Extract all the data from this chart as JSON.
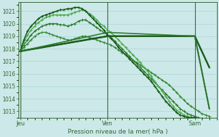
{
  "bg_color": "#cce8e8",
  "grid_color": "#aad4d4",
  "xlabel": "Pression niveau de la mer( hPa )",
  "xlabel_color": "#336633",
  "tick_color": "#336633",
  "axis_color": "#336633",
  "yticks": [
    1013,
    1014,
    1015,
    1016,
    1017,
    1018,
    1019,
    1020,
    1021
  ],
  "ylim": [
    1012.5,
    1021.7
  ],
  "xtick_labels": [
    "Jeu",
    "Ven",
    "Sam"
  ],
  "xtick_positions": [
    0,
    48,
    96
  ],
  "xlim": [
    -1,
    108
  ],
  "vline_color": "#336633",
  "series": [
    {
      "x": [
        0,
        2,
        4,
        6,
        8,
        10,
        12,
        14,
        16,
        18,
        20,
        22,
        24,
        26,
        28,
        30,
        32,
        34,
        36,
        38,
        40,
        42,
        44,
        46,
        48,
        50,
        52,
        54,
        56,
        58,
        60,
        62,
        64,
        66,
        68,
        70,
        72,
        74,
        76,
        78,
        80,
        82,
        84,
        86,
        88,
        90,
        92,
        94,
        96,
        98,
        100,
        102,
        104
      ],
      "y": [
        1017.8,
        1018.1,
        1018.4,
        1018.7,
        1019.0,
        1019.2,
        1019.3,
        1019.3,
        1019.2,
        1019.1,
        1019.0,
        1018.9,
        1018.8,
        1018.7,
        1018.7,
        1018.8,
        1018.9,
        1019.0,
        1019.0,
        1018.9,
        1018.8,
        1018.7,
        1018.6,
        1018.5,
        1018.4,
        1018.3,
        1018.1,
        1017.9,
        1017.7,
        1017.5,
        1017.3,
        1017.1,
        1016.9,
        1016.7,
        1016.5,
        1016.3,
        1016.1,
        1015.9,
        1015.7,
        1015.5,
        1015.3,
        1015.1,
        1014.8,
        1014.5,
        1014.2,
        1013.9,
        1013.6,
        1013.4,
        1013.2,
        1013.0,
        1012.8,
        1012.7,
        1012.6
      ],
      "color": "#3a8a3a",
      "lw": 1.0,
      "marker": true
    },
    {
      "x": [
        0,
        2,
        4,
        6,
        8,
        10,
        12,
        14,
        16,
        18,
        20,
        22,
        24,
        26,
        28,
        30,
        32,
        34,
        36,
        38,
        40,
        42,
        44,
        46,
        48,
        50,
        52,
        54,
        56,
        58,
        60,
        62,
        64,
        66,
        68,
        70,
        72,
        74,
        76,
        78,
        80,
        82,
        84,
        86,
        88,
        90,
        92,
        94,
        96,
        98,
        100,
        102,
        104
      ],
      "y": [
        1017.8,
        1018.3,
        1018.7,
        1019.1,
        1019.4,
        1019.6,
        1019.8,
        1019.9,
        1020.0,
        1020.0,
        1020.0,
        1019.9,
        1019.9,
        1019.8,
        1019.9,
        1020.0,
        1020.2,
        1020.3,
        1020.3,
        1020.1,
        1019.9,
        1019.7,
        1019.5,
        1019.3,
        1019.1,
        1018.9,
        1018.6,
        1018.3,
        1018.0,
        1017.7,
        1017.4,
        1017.1,
        1016.8,
        1016.5,
        1016.2,
        1015.9,
        1015.6,
        1015.3,
        1015.0,
        1014.7,
        1014.4,
        1014.1,
        1013.8,
        1013.5,
        1013.2,
        1013.0,
        1012.8,
        1012.7,
        1012.6,
        1012.5,
        1012.4,
        1012.4,
        1012.4
      ],
      "color": "#2d7a2d",
      "lw": 1.0,
      "marker": true
    },
    {
      "x": [
        0,
        2,
        4,
        6,
        8,
        10,
        12,
        14,
        16,
        18,
        20,
        22,
        24,
        26,
        28,
        30,
        32,
        34,
        36,
        38,
        40,
        42,
        44,
        46,
        48,
        50,
        52,
        54,
        56,
        58,
        60,
        62,
        64,
        66,
        68,
        70,
        72,
        74,
        76,
        78,
        80,
        82,
        84,
        86,
        88,
        90,
        92,
        94,
        96,
        98,
        100,
        102,
        104
      ],
      "y": [
        1017.8,
        1018.5,
        1019.1,
        1019.5,
        1019.8,
        1020.1,
        1020.3,
        1020.5,
        1020.6,
        1020.7,
        1020.7,
        1020.7,
        1020.7,
        1020.7,
        1020.8,
        1020.9,
        1021.0,
        1021.1,
        1021.0,
        1020.8,
        1020.6,
        1020.3,
        1020.0,
        1019.8,
        1019.5,
        1019.3,
        1019.0,
        1018.7,
        1018.4,
        1018.1,
        1017.8,
        1017.5,
        1017.2,
        1016.9,
        1016.5,
        1016.2,
        1015.8,
        1015.4,
        1015.0,
        1014.6,
        1014.2,
        1013.8,
        1013.4,
        1013.1,
        1012.9,
        1012.7,
        1012.6,
        1012.5,
        1012.5,
        1012.4,
        1012.4,
        1012.4,
        1012.4
      ],
      "color": "#4aaa4a",
      "lw": 1.0,
      "marker": true
    },
    {
      "x": [
        0,
        2,
        4,
        6,
        8,
        10,
        12,
        14,
        16,
        18,
        20,
        22,
        24,
        26,
        28,
        30,
        32,
        34,
        36,
        38,
        40,
        42,
        44,
        46,
        48,
        50,
        52,
        54,
        56,
        58,
        60,
        62,
        64,
        66,
        68,
        70,
        72,
        74,
        76,
        78,
        80,
        82,
        84,
        86,
        88,
        90,
        92,
        94,
        96,
        98,
        100,
        102,
        104
      ],
      "y": [
        1017.8,
        1018.7,
        1019.4,
        1019.8,
        1020.1,
        1020.4,
        1020.6,
        1020.7,
        1020.8,
        1020.9,
        1021.0,
        1021.1,
        1021.1,
        1021.2,
        1021.2,
        1021.3,
        1021.3,
        1021.2,
        1021.0,
        1020.7,
        1020.4,
        1020.1,
        1019.8,
        1019.5,
        1019.1,
        1018.8,
        1018.5,
        1018.1,
        1017.8,
        1017.5,
        1017.2,
        1016.9,
        1016.6,
        1016.3,
        1016.0,
        1015.7,
        1015.4,
        1015.0,
        1014.6,
        1014.2,
        1013.8,
        1013.5,
        1013.2,
        1012.9,
        1012.7,
        1012.6,
        1012.5,
        1012.5,
        1012.5,
        1012.4,
        1012.4,
        1012.4,
        1012.4
      ],
      "color": "#1a5c1a",
      "lw": 1.2,
      "marker": true
    },
    {
      "x": [
        0,
        48,
        96,
        104
      ],
      "y": [
        1017.8,
        1019.0,
        1019.0,
        1016.5
      ],
      "color": "#1a5c1a",
      "lw": 1.8,
      "marker": false
    },
    {
      "x": [
        0,
        48,
        96,
        104
      ],
      "y": [
        1017.8,
        1019.0,
        1019.0,
        1013.2
      ],
      "color": "#1a5c1a",
      "lw": 1.4,
      "marker": false
    },
    {
      "x": [
        0,
        48,
        96,
        104
      ],
      "y": [
        1017.8,
        1019.3,
        1019.0,
        1013.2
      ],
      "color": "#2d7a2d",
      "lw": 1.2,
      "marker": false
    }
  ]
}
